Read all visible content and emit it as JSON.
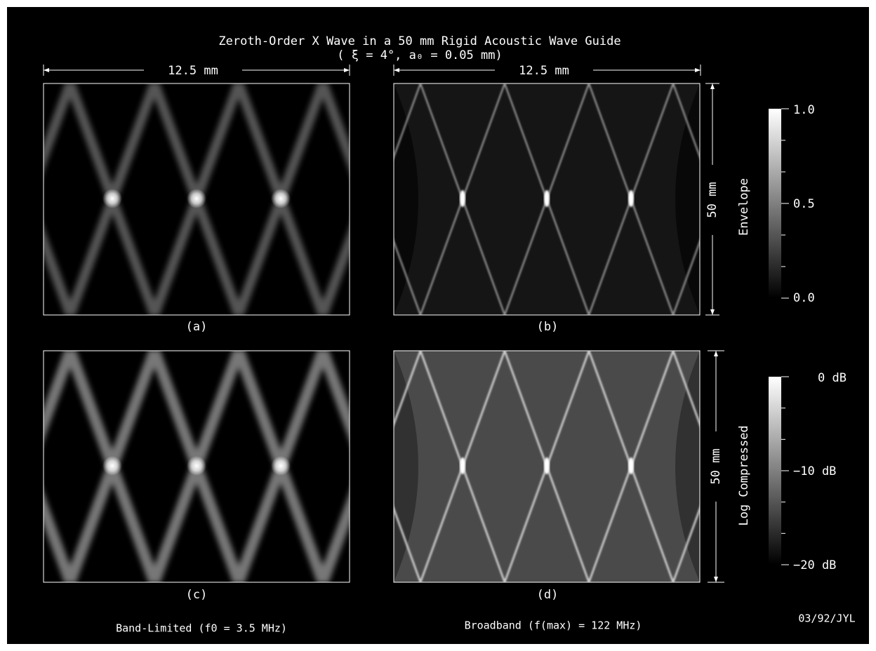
{
  "figure": {
    "title": "Zeroth-Order X Wave in a 50 mm Rigid Acoustic Wave Guide",
    "subtitle": "( ξ = 4°, a₀ = 0.05 mm)",
    "width_label_left": "12.5 mm",
    "width_label_right": "12.5 mm",
    "height_label_top": "50 mm",
    "height_label_bottom": "50 mm",
    "panels": [
      "(a)",
      "(b)",
      "(c)",
      "(d)"
    ],
    "captions": [
      "Band-Limited (f0 = 3.5 MHz)",
      "Broadband (f(max) = 122 MHz)"
    ],
    "colorbars": [
      {
        "label": "Envelope",
        "ticks": [
          "1.0",
          "0.5",
          "0.0"
        ]
      },
      {
        "label": "Log Compressed",
        "ticks": [
          "0 dB",
          "−10 dB",
          "−20 dB"
        ]
      }
    ],
    "stamp": "03/92/JYL"
  }
}
